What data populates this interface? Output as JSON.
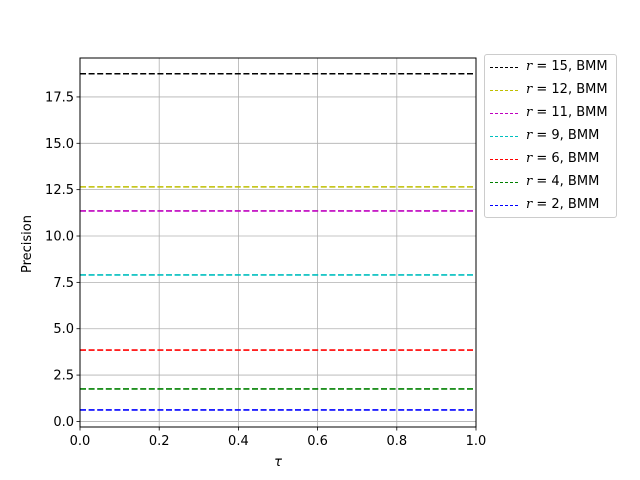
{
  "chart_data": {
    "type": "line",
    "title": "",
    "xlabel": "τ",
    "ylabel": "Precision",
    "xlim": [
      0.0,
      1.0
    ],
    "ylim": [
      -0.3,
      19.6
    ],
    "xticks": [
      "0.0",
      "0.2",
      "0.4",
      "0.6",
      "0.8",
      "1.0"
    ],
    "yticks": [
      "0.0",
      "2.5",
      "5.0",
      "7.5",
      "10.0",
      "12.5",
      "15.0",
      "17.5"
    ],
    "grid": true,
    "legend_position": "outside top-right",
    "x": [
      0.0,
      1.0
    ],
    "series": [
      {
        "name": "r = 15, BMM",
        "r": "15",
        "suffix": ", BMM",
        "color": "#000000",
        "linestyle": "dashed",
        "values": [
          18.75,
          18.75
        ]
      },
      {
        "name": "r = 12, BMM",
        "r": "12",
        "suffix": ", BMM",
        "color": "#bfbf00",
        "linestyle": "dashed",
        "values": [
          12.65,
          12.65
        ]
      },
      {
        "name": "r = 11, BMM",
        "r": "11",
        "suffix": ", BMM",
        "color": "#bf00bf",
        "linestyle": "dashed",
        "values": [
          11.35,
          11.35
        ]
      },
      {
        "name": "r = 9, BMM",
        "r": "9",
        "suffix": ", BMM",
        "color": "#00bfbf",
        "linestyle": "dashed",
        "values": [
          7.9,
          7.9
        ]
      },
      {
        "name": "r = 6, BMM",
        "r": "6",
        "suffix": ", BMM",
        "color": "#ff0000",
        "linestyle": "dashed",
        "values": [
          3.85,
          3.85
        ]
      },
      {
        "name": "r = 4, BMM",
        "r": "4",
        "suffix": ", BMM",
        "color": "#008000",
        "linestyle": "dashed",
        "values": [
          1.75,
          1.75
        ]
      },
      {
        "name": "r = 2, BMM",
        "r": "2",
        "suffix": ", BMM",
        "color": "#0000ff",
        "linestyle": "dashed",
        "values": [
          0.62,
          0.62
        ]
      }
    ]
  }
}
